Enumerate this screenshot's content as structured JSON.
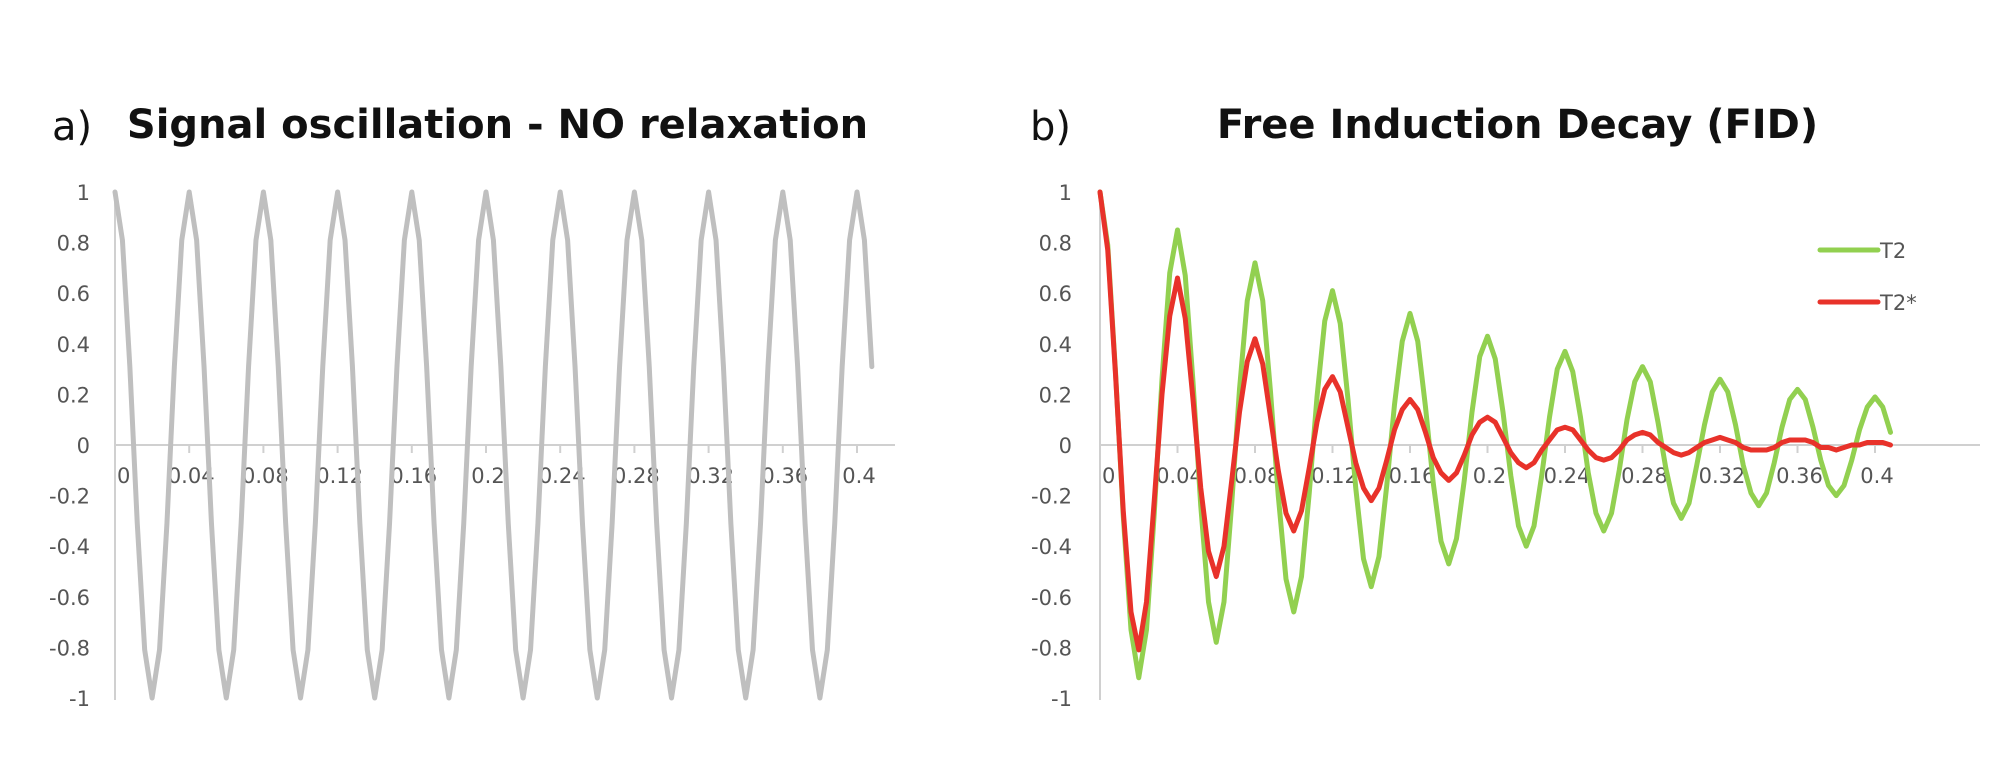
{
  "figure": {
    "panels": [
      {
        "label": "a)",
        "title": "Signal oscillation - NO relaxation"
      },
      {
        "label": "b)",
        "title": "Free Induction Decay (FID)"
      }
    ]
  },
  "chart_data": [
    {
      "type": "line",
      "title": "Signal oscillation - NO relaxation",
      "xlim": [
        0,
        0.41
      ],
      "ylim": [
        -1,
        1
      ],
      "xticks": [
        0,
        0.04,
        0.08,
        0.12,
        0.16,
        0.2,
        0.24,
        0.28,
        0.32,
        0.36,
        0.4
      ],
      "xtick_labels": [
        "0",
        "0.04",
        "0.08",
        "0.12",
        "0.16",
        "0.2",
        "0.24",
        "0.28",
        "0.32",
        "0.36",
        "0.4"
      ],
      "yticks": [
        1,
        0.8,
        0.6,
        0.4,
        0.2,
        0,
        -0.2,
        -0.4,
        -0.6,
        -0.8,
        -1
      ],
      "ytick_labels": [
        "1",
        "0.8",
        "0.6",
        "0.4",
        "0.2",
        "0",
        "-0.2",
        "-0.4",
        "-0.6",
        "-0.8",
        "-1"
      ],
      "grid": false,
      "legend": "none",
      "series": [
        {
          "color": "#bfbfbf",
          "x": [
            0,
            0.004,
            0.008,
            0.012,
            0.016,
            0.02,
            0.024,
            0.028,
            0.032,
            0.036,
            0.04,
            0.044,
            0.048,
            0.052,
            0.056,
            0.06,
            0.064,
            0.068,
            0.072,
            0.076,
            0.08,
            0.084,
            0.088,
            0.092,
            0.096,
            0.1,
            0.104,
            0.108,
            0.112,
            0.116,
            0.12,
            0.124,
            0.128,
            0.132,
            0.136,
            0.14,
            0.144,
            0.148,
            0.152,
            0.156,
            0.16,
            0.164,
            0.168,
            0.172,
            0.176,
            0.18,
            0.184,
            0.188,
            0.192,
            0.196,
            0.2,
            0.204,
            0.208,
            0.212,
            0.216,
            0.22,
            0.224,
            0.228,
            0.232,
            0.236,
            0.24,
            0.244,
            0.248,
            0.252,
            0.256,
            0.26,
            0.264,
            0.268,
            0.272,
            0.276,
            0.28,
            0.284,
            0.288,
            0.292,
            0.296,
            0.3,
            0.304,
            0.308,
            0.312,
            0.316,
            0.32,
            0.324,
            0.328,
            0.332,
            0.336,
            0.34,
            0.344,
            0.348,
            0.352,
            0.356,
            0.36,
            0.364,
            0.368,
            0.372,
            0.376,
            0.38,
            0.384,
            0.388,
            0.392,
            0.396,
            0.4,
            0.404,
            0.408
          ],
          "y": [
            1,
            0.81,
            0.31,
            -0.31,
            -0.81,
            -1,
            -0.81,
            -0.31,
            0.31,
            0.81,
            1,
            0.81,
            0.31,
            -0.31,
            -0.81,
            -1,
            -0.81,
            -0.31,
            0.31,
            0.81,
            1,
            0.81,
            0.31,
            -0.31,
            -0.81,
            -1,
            -0.81,
            -0.31,
            0.31,
            0.81,
            1,
            0.81,
            0.31,
            -0.31,
            -0.81,
            -1,
            -0.81,
            -0.31,
            0.31,
            0.81,
            1,
            0.81,
            0.31,
            -0.31,
            -0.81,
            -1,
            -0.81,
            -0.31,
            0.31,
            0.81,
            1,
            0.81,
            0.31,
            -0.31,
            -0.81,
            -1,
            -0.81,
            -0.31,
            0.31,
            0.81,
            1,
            0.81,
            0.31,
            -0.31,
            -0.81,
            -1,
            -0.81,
            -0.31,
            0.31,
            0.81,
            1,
            0.81,
            0.31,
            -0.31,
            -0.81,
            -1,
            -0.81,
            -0.31,
            0.31,
            0.81,
            1,
            0.81,
            0.31,
            -0.31,
            -0.81,
            -1,
            -0.81,
            -0.31,
            0.31,
            0.81,
            1,
            0.81,
            0.31,
            -0.31,
            -0.81,
            -1,
            -0.81,
            -0.31,
            0.31,
            0.81,
            1,
            0.81,
            0.31
          ]
        }
      ]
    },
    {
      "type": "line",
      "title": "Free Induction Decay (FID)",
      "xlim": [
        0,
        0.41
      ],
      "ylim": [
        -1,
        1
      ],
      "xticks": [
        0,
        0.04,
        0.08,
        0.12,
        0.16,
        0.2,
        0.24,
        0.28,
        0.32,
        0.36,
        0.4
      ],
      "xtick_labels": [
        "0",
        "0.04",
        "0.08",
        "0.12",
        "0.16",
        "0.2",
        "0.24",
        "0.28",
        "0.32",
        "0.36",
        "0.4"
      ],
      "yticks": [
        1,
        0.8,
        0.6,
        0.4,
        0.2,
        0,
        -0.2,
        -0.4,
        -0.6,
        -0.8,
        -1
      ],
      "ytick_labels": [
        "1",
        "0.8",
        "0.6",
        "0.4",
        "0.2",
        "0",
        "-0.2",
        "-0.4",
        "-0.6",
        "-0.8",
        "-1"
      ],
      "grid": false,
      "legend": "top-right",
      "series": [
        {
          "name": "T2",
          "color": "#92d050",
          "x": [
            0,
            0.004,
            0.008,
            0.012,
            0.016,
            0.02,
            0.024,
            0.028,
            0.032,
            0.036,
            0.04,
            0.044,
            0.048,
            0.052,
            0.056,
            0.06,
            0.064,
            0.068,
            0.072,
            0.076,
            0.08,
            0.084,
            0.088,
            0.092,
            0.096,
            0.1,
            0.104,
            0.108,
            0.112,
            0.116,
            0.12,
            0.124,
            0.128,
            0.132,
            0.136,
            0.14,
            0.144,
            0.148,
            0.152,
            0.156,
            0.16,
            0.164,
            0.168,
            0.172,
            0.176,
            0.18,
            0.184,
            0.188,
            0.192,
            0.196,
            0.2,
            0.204,
            0.208,
            0.212,
            0.216,
            0.22,
            0.224,
            0.228,
            0.232,
            0.236,
            0.24,
            0.244,
            0.248,
            0.252,
            0.256,
            0.26,
            0.264,
            0.268,
            0.272,
            0.276,
            0.28,
            0.284,
            0.288,
            0.292,
            0.296,
            0.3,
            0.304,
            0.308,
            0.312,
            0.316,
            0.32,
            0.324,
            0.328,
            0.332,
            0.336,
            0.34,
            0.344,
            0.348,
            0.352,
            0.356,
            0.36,
            0.364,
            0.368,
            0.372,
            0.376,
            0.38,
            0.384,
            0.388,
            0.392,
            0.396,
            0.4,
            0.404,
            0.408
          ],
          "y": [
            1,
            0.79,
            0.29,
            -0.28,
            -0.73,
            -0.92,
            -0.73,
            -0.27,
            0.26,
            0.68,
            0.85,
            0.67,
            0.25,
            -0.24,
            -0.62,
            -0.78,
            -0.62,
            -0.23,
            0.22,
            0.57,
            0.72,
            0.57,
            0.21,
            -0.2,
            -0.53,
            -0.66,
            -0.52,
            -0.19,
            0.19,
            0.49,
            0.61,
            0.48,
            0.18,
            -0.17,
            -0.45,
            -0.56,
            -0.44,
            -0.16,
            0.16,
            0.41,
            0.52,
            0.41,
            0.15,
            -0.15,
            -0.38,
            -0.47,
            -0.37,
            -0.14,
            0.13,
            0.35,
            0.43,
            0.34,
            0.13,
            -0.12,
            -0.32,
            -0.4,
            -0.32,
            -0.12,
            0.11,
            0.3,
            0.37,
            0.29,
            0.11,
            -0.11,
            -0.27,
            -0.34,
            -0.27,
            -0.1,
            0.1,
            0.25,
            0.31,
            0.25,
            0.09,
            -0.09,
            -0.23,
            -0.29,
            -0.23,
            -0.08,
            0.08,
            0.21,
            0.26,
            0.21,
            0.08,
            -0.08,
            -0.19,
            -0.24,
            -0.19,
            -0.07,
            0.07,
            0.18,
            0.22,
            0.18,
            0.07,
            -0.06,
            -0.16,
            -0.2,
            -0.16,
            -0.06,
            0.06,
            0.15,
            0.19,
            0.15,
            0.05
          ]
        },
        {
          "name": "T2*",
          "color": "#e8322a",
          "x": [
            0,
            0.004,
            0.008,
            0.012,
            0.016,
            0.02,
            0.024,
            0.028,
            0.032,
            0.036,
            0.04,
            0.044,
            0.048,
            0.052,
            0.056,
            0.06,
            0.064,
            0.068,
            0.072,
            0.076,
            0.08,
            0.084,
            0.088,
            0.092,
            0.096,
            0.1,
            0.104,
            0.108,
            0.112,
            0.116,
            0.12,
            0.124,
            0.128,
            0.132,
            0.136,
            0.14,
            0.144,
            0.148,
            0.152,
            0.156,
            0.16,
            0.164,
            0.168,
            0.172,
            0.176,
            0.18,
            0.184,
            0.188,
            0.192,
            0.196,
            0.2,
            0.204,
            0.208,
            0.212,
            0.216,
            0.22,
            0.224,
            0.228,
            0.232,
            0.236,
            0.24,
            0.244,
            0.248,
            0.252,
            0.256,
            0.26,
            0.264,
            0.268,
            0.272,
            0.276,
            0.28,
            0.284,
            0.288,
            0.292,
            0.296,
            0.3,
            0.304,
            0.308,
            0.312,
            0.316,
            0.32,
            0.324,
            0.328,
            0.332,
            0.336,
            0.34,
            0.344,
            0.348,
            0.352,
            0.356,
            0.36,
            0.364,
            0.368,
            0.372,
            0.376,
            0.38,
            0.384,
            0.388,
            0.392,
            0.396,
            0.4,
            0.404,
            0.408
          ],
          "y": [
            1,
            0.77,
            0.28,
            -0.26,
            -0.66,
            -0.81,
            -0.62,
            -0.22,
            0.2,
            0.51,
            0.66,
            0.5,
            0.18,
            -0.17,
            -0.42,
            -0.52,
            -0.4,
            -0.14,
            0.13,
            0.33,
            0.42,
            0.32,
            0.11,
            -0.1,
            -0.27,
            -0.34,
            -0.26,
            -0.09,
            0.09,
            0.22,
            0.27,
            0.21,
            0.07,
            -0.07,
            -0.17,
            -0.22,
            -0.17,
            -0.06,
            0.06,
            0.14,
            0.18,
            0.14,
            0.05,
            -0.05,
            -0.11,
            -0.14,
            -0.11,
            -0.04,
            0.04,
            0.09,
            0.11,
            0.09,
            0.03,
            -0.03,
            -0.07,
            -0.09,
            -0.07,
            -0.02,
            0.02,
            0.06,
            0.07,
            0.06,
            0.02,
            -0.02,
            -0.05,
            -0.06,
            -0.05,
            -0.02,
            0.02,
            0.04,
            0.05,
            0.04,
            0.01,
            -0.01,
            -0.03,
            -0.04,
            -0.03,
            -0.01,
            0.01,
            0.02,
            0.03,
            0.02,
            0.01,
            -0.01,
            -0.02,
            -0.02,
            -0.02,
            -0.01,
            0.01,
            0.02,
            0.02,
            0.02,
            0.01,
            -0.01,
            -0.01,
            -0.02,
            -0.01,
            0,
            0,
            0.01,
            0.01,
            0.01,
            0
          ]
        }
      ]
    }
  ]
}
